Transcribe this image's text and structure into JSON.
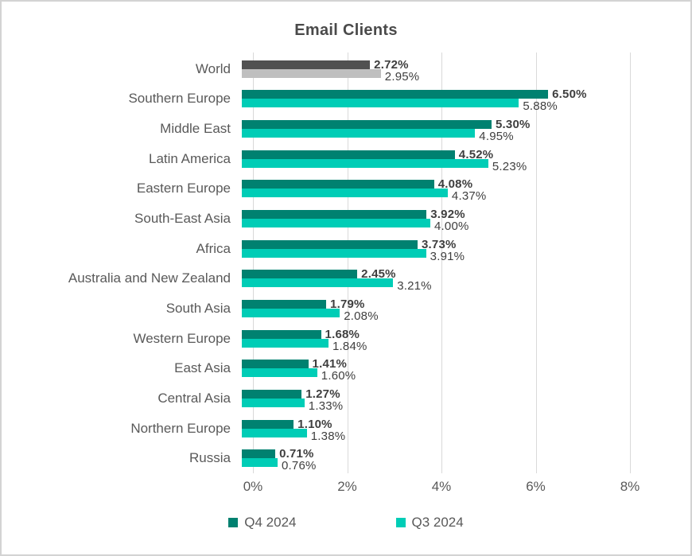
{
  "title": "Email Clients",
  "colors": {
    "q4_bar": "#008170",
    "q3_bar": "#00cdb6",
    "world_q4_bar": "#515151",
    "world_q3_bar": "#bfbfbf",
    "value_label": "#3f3f3f",
    "axis_text": "#595959",
    "gridline": "#d9d9d9"
  },
  "chart_data": {
    "type": "bar",
    "orientation": "horizontal",
    "title": "Email Clients",
    "categories": [
      "World",
      "Southern Europe",
      "Middle East",
      "Latin America",
      "Eastern Europe",
      "South-East Asia",
      "Africa",
      "Australia and New Zealand",
      "South Asia",
      "Western Europe",
      "East Asia",
      "Central Asia",
      "Northern Europe",
      "Russia"
    ],
    "series": [
      {
        "name": "Q4 2024",
        "values": [
          2.72,
          6.5,
          5.3,
          4.52,
          4.08,
          3.92,
          3.73,
          2.45,
          1.79,
          1.68,
          1.41,
          1.27,
          1.1,
          0.71
        ],
        "labels": [
          "2.72%",
          "6.50%",
          "5.30%",
          "4.52%",
          "4.08%",
          "3.92%",
          "3.73%",
          "2.45%",
          "1.79%",
          "1.68%",
          "1.41%",
          "1.27%",
          "1.10%",
          "0.71%"
        ]
      },
      {
        "name": "Q3 2024",
        "values": [
          2.95,
          5.88,
          4.95,
          5.23,
          4.37,
          4.0,
          3.91,
          3.21,
          2.08,
          1.84,
          1.6,
          1.33,
          1.38,
          0.76
        ],
        "labels": [
          "2.95%",
          "5.88%",
          "4.95%",
          "5.23%",
          "4.37%",
          "4.00%",
          "3.91%",
          "3.21%",
          "2.08%",
          "1.84%",
          "1.60%",
          "1.33%",
          "1.38%",
          "0.76%"
        ]
      }
    ],
    "x_axis": {
      "min": 0,
      "max": 8,
      "ticks": [
        "0%",
        "2%",
        "4%",
        "6%",
        "8%"
      ]
    },
    "grid": "vertical",
    "legend_position": "bottom",
    "value_labels_shown": true,
    "note_world_row_uses_gray_bars": true
  }
}
